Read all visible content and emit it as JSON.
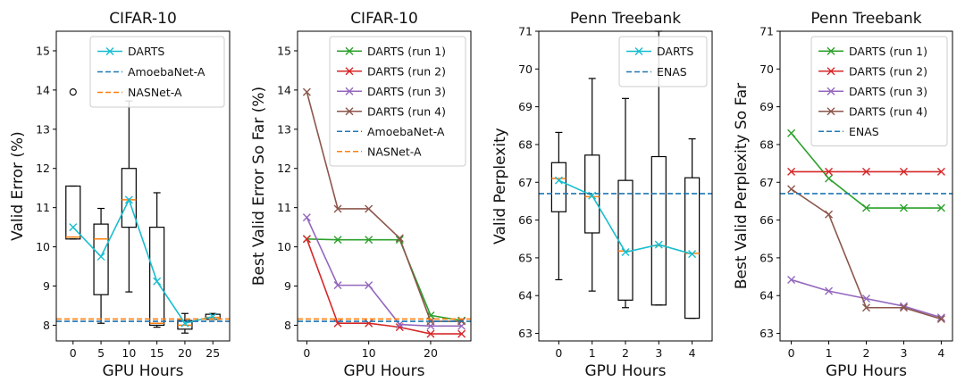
{
  "chart_data": [
    {
      "type": "box-line",
      "title": "CIFAR-10",
      "xlabel": "GPU Hours",
      "ylabel": "Valid Error (%)",
      "xlim": [
        -3,
        28
      ],
      "ylim": [
        7.6,
        15.5
      ],
      "xticks": [
        0,
        5,
        10,
        15,
        20,
        25
      ],
      "yticks": [
        8,
        9,
        10,
        11,
        12,
        13,
        14,
        15
      ],
      "legend_position": "top-right",
      "boxes": [
        {
          "x": 0,
          "whislo": 10.2,
          "q1": 10.2,
          "med": 10.25,
          "q3": 11.55,
          "whishi": 11.55,
          "fliers": [
            13.95
          ]
        },
        {
          "x": 5,
          "whislo": 8.05,
          "q1": 8.78,
          "med": 10.2,
          "q3": 10.58,
          "whishi": 10.98,
          "fliers": []
        },
        {
          "x": 10,
          "whislo": 8.85,
          "q1": 10.5,
          "med": 11.2,
          "q3": 12.0,
          "whishi": 13.72,
          "fliers": []
        },
        {
          "x": 15,
          "whislo": 7.95,
          "q1": 8.0,
          "med": 8.05,
          "q3": 10.5,
          "whishi": 11.38,
          "fliers": []
        },
        {
          "x": 20,
          "whislo": 7.8,
          "q1": 7.9,
          "med": 8.0,
          "q3": 8.12,
          "whishi": 8.3,
          "fliers": []
        },
        {
          "x": 25,
          "whislo": 8.15,
          "q1": 8.15,
          "med": 8.2,
          "q3": 8.28,
          "whishi": 8.3,
          "fliers": []
        }
      ],
      "series": [
        {
          "name": "DARTS",
          "color": "#17becf",
          "kind": "line",
          "marker": "x",
          "x": [
            0,
            5,
            10,
            15,
            20,
            25
          ],
          "values": [
            10.5,
            9.75,
            11.2,
            9.12,
            8.05,
            8.22
          ]
        },
        {
          "name": "AmoebaNet-A",
          "color": "#1f77b4",
          "kind": "hline",
          "value": 8.1
        },
        {
          "name": "NASNet-A",
          "color": "#ff7f0e",
          "kind": "hline",
          "value": 8.16
        }
      ]
    },
    {
      "type": "line",
      "title": "CIFAR-10",
      "xlabel": "GPU Hours",
      "ylabel": "Best Valid Error So Far (%)",
      "xlim": [
        -1.5,
        26.5
      ],
      "ylim": [
        7.6,
        15.5
      ],
      "xticks": [
        0,
        10,
        20
      ],
      "yticks": [
        8,
        9,
        10,
        11,
        12,
        13,
        14,
        15
      ],
      "legend_position": "top-right",
      "series": [
        {
          "name": "DARTS (run 1)",
          "color": "#2ca02c",
          "kind": "line",
          "marker": "x",
          "x": [
            0,
            5,
            10,
            15,
            20,
            25
          ],
          "values": [
            10.2,
            10.18,
            10.18,
            10.18,
            8.25,
            8.12
          ]
        },
        {
          "name": "DARTS (run 2)",
          "color": "#d62728",
          "kind": "line",
          "marker": "x",
          "x": [
            0,
            5,
            10,
            15,
            20,
            25
          ],
          "values": [
            10.2,
            8.05,
            8.05,
            7.95,
            7.78,
            7.78
          ]
        },
        {
          "name": "DARTS (run 3)",
          "color": "#9467bd",
          "kind": "line",
          "marker": "x",
          "x": [
            0,
            5,
            10,
            15,
            20,
            25
          ],
          "values": [
            10.75,
            9.02,
            9.02,
            8.02,
            7.98,
            7.98
          ]
        },
        {
          "name": "DARTS (run 4)",
          "color": "#8c564b",
          "kind": "line",
          "marker": "x",
          "x": [
            0,
            5,
            10,
            15,
            20,
            25
          ],
          "values": [
            13.95,
            10.97,
            10.97,
            10.22,
            8.1,
            8.1
          ]
        },
        {
          "name": "AmoebaNet-A",
          "color": "#1f77b4",
          "kind": "hline",
          "value": 8.1
        },
        {
          "name": "NASNet-A",
          "color": "#ff7f0e",
          "kind": "hline",
          "value": 8.16
        }
      ]
    },
    {
      "type": "box-line",
      "title": "Penn Treebank",
      "xlabel": "GPU Hours",
      "ylabel": "Valid Perplexity",
      "xlim": [
        -0.6,
        4.6
      ],
      "ylim": [
        62.8,
        71
      ],
      "xticks": [
        0,
        1,
        2,
        3,
        4
      ],
      "yticks": [
        63,
        64,
        65,
        66,
        67,
        68,
        69,
        70,
        71
      ],
      "legend_position": "top-right",
      "boxes": [
        {
          "x": 0,
          "whislo": 64.42,
          "q1": 66.22,
          "med": 67.1,
          "q3": 67.52,
          "whishi": 68.32,
          "fliers": []
        },
        {
          "x": 1,
          "whislo": 64.12,
          "q1": 65.66,
          "med": 66.62,
          "q3": 67.72,
          "whishi": 69.75,
          "fliers": []
        },
        {
          "x": 2,
          "whislo": 63.68,
          "q1": 63.88,
          "med": 65.18,
          "q3": 67.05,
          "whishi": 69.22,
          "fliers": []
        },
        {
          "x": 3,
          "whislo": 63.75,
          "q1": 63.75,
          "med": 65.32,
          "q3": 67.68,
          "whishi": 71.0,
          "fliers": []
        },
        {
          "x": 4,
          "whislo": 63.4,
          "q1": 63.4,
          "med": 65.12,
          "q3": 67.12,
          "whishi": 68.15,
          "fliers": []
        }
      ],
      "series": [
        {
          "name": "DARTS",
          "color": "#17becf",
          "kind": "line",
          "marker": "x",
          "x": [
            0,
            1,
            2,
            3,
            4
          ],
          "values": [
            67.05,
            66.65,
            65.15,
            65.35,
            65.1
          ]
        },
        {
          "name": "ENAS",
          "color": "#1f77b4",
          "kind": "hline",
          "value": 66.7
        }
      ]
    },
    {
      "type": "line",
      "title": "Penn Treebank",
      "xlabel": "GPU Hours",
      "ylabel": "Best Valid Perplexity So Far",
      "xlim": [
        -0.3,
        4.3
      ],
      "ylim": [
        62.8,
        71
      ],
      "xticks": [
        0,
        1,
        2,
        3,
        4
      ],
      "yticks": [
        63,
        64,
        65,
        66,
        67,
        68,
        69,
        70,
        71
      ],
      "legend_position": "top-right",
      "series": [
        {
          "name": "DARTS (run 1)",
          "color": "#2ca02c",
          "kind": "line",
          "marker": "x",
          "x": [
            0,
            1,
            2,
            3,
            4
          ],
          "values": [
            68.3,
            67.1,
            66.32,
            66.32,
            66.32
          ]
        },
        {
          "name": "DARTS (run 2)",
          "color": "#d62728",
          "kind": "line",
          "marker": "x",
          "x": [
            0,
            1,
            2,
            3,
            4
          ],
          "values": [
            67.28,
            67.28,
            67.28,
            67.28,
            67.28
          ]
        },
        {
          "name": "DARTS (run 3)",
          "color": "#9467bd",
          "kind": "line",
          "marker": "x",
          "x": [
            0,
            1,
            2,
            3,
            4
          ],
          "values": [
            64.42,
            64.12,
            63.92,
            63.72,
            63.42
          ]
        },
        {
          "name": "DARTS (run 4)",
          "color": "#8c564b",
          "kind": "line",
          "marker": "x",
          "x": [
            0,
            1,
            2,
            3,
            4
          ],
          "values": [
            66.82,
            66.15,
            63.68,
            63.68,
            63.38
          ]
        },
        {
          "name": "ENAS",
          "color": "#1f77b4",
          "kind": "hline",
          "value": 66.7
        }
      ]
    }
  ]
}
